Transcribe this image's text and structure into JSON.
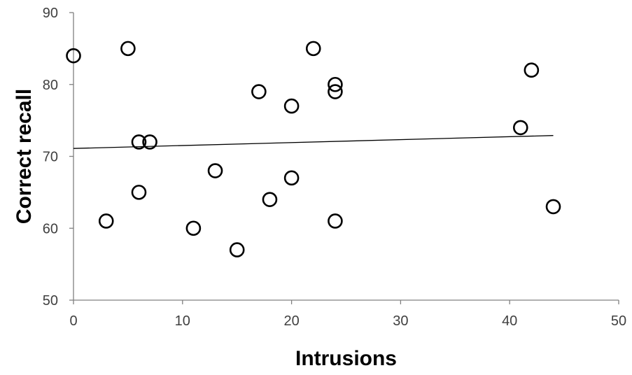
{
  "chart_data": {
    "type": "scatter",
    "xlabel": "Intrusions",
    "ylabel": "Correct recall",
    "xlim": [
      0,
      50
    ],
    "ylim": [
      50,
      90
    ],
    "x_ticks": [
      "0",
      "10",
      "20",
      "30",
      "40",
      "50"
    ],
    "y_ticks": [
      "50",
      "60",
      "70",
      "80",
      "90"
    ],
    "grid": false,
    "legend": "none",
    "marker": "open-circle",
    "points": [
      {
        "x": 0,
        "y": 84
      },
      {
        "x": 3,
        "y": 61
      },
      {
        "x": 5,
        "y": 85
      },
      {
        "x": 6,
        "y": 72
      },
      {
        "x": 6,
        "y": 65
      },
      {
        "x": 7,
        "y": 72
      },
      {
        "x": 11,
        "y": 60
      },
      {
        "x": 13,
        "y": 68
      },
      {
        "x": 15,
        "y": 57
      },
      {
        "x": 17,
        "y": 79
      },
      {
        "x": 18,
        "y": 64
      },
      {
        "x": 20,
        "y": 77
      },
      {
        "x": 20,
        "y": 67
      },
      {
        "x": 22,
        "y": 85
      },
      {
        "x": 24,
        "y": 80
      },
      {
        "x": 24,
        "y": 79
      },
      {
        "x": 24,
        "y": 61
      },
      {
        "x": 41,
        "y": 74
      },
      {
        "x": 42,
        "y": 82
      },
      {
        "x": 44,
        "y": 63
      }
    ],
    "trendline": {
      "type": "linear",
      "from": {
        "x": 0,
        "y": 71.1
      },
      "to": {
        "x": 44,
        "y": 72.9
      }
    },
    "colors": {
      "marker": "#000000",
      "axis": "#808080",
      "tick_text": "#404040"
    }
  }
}
